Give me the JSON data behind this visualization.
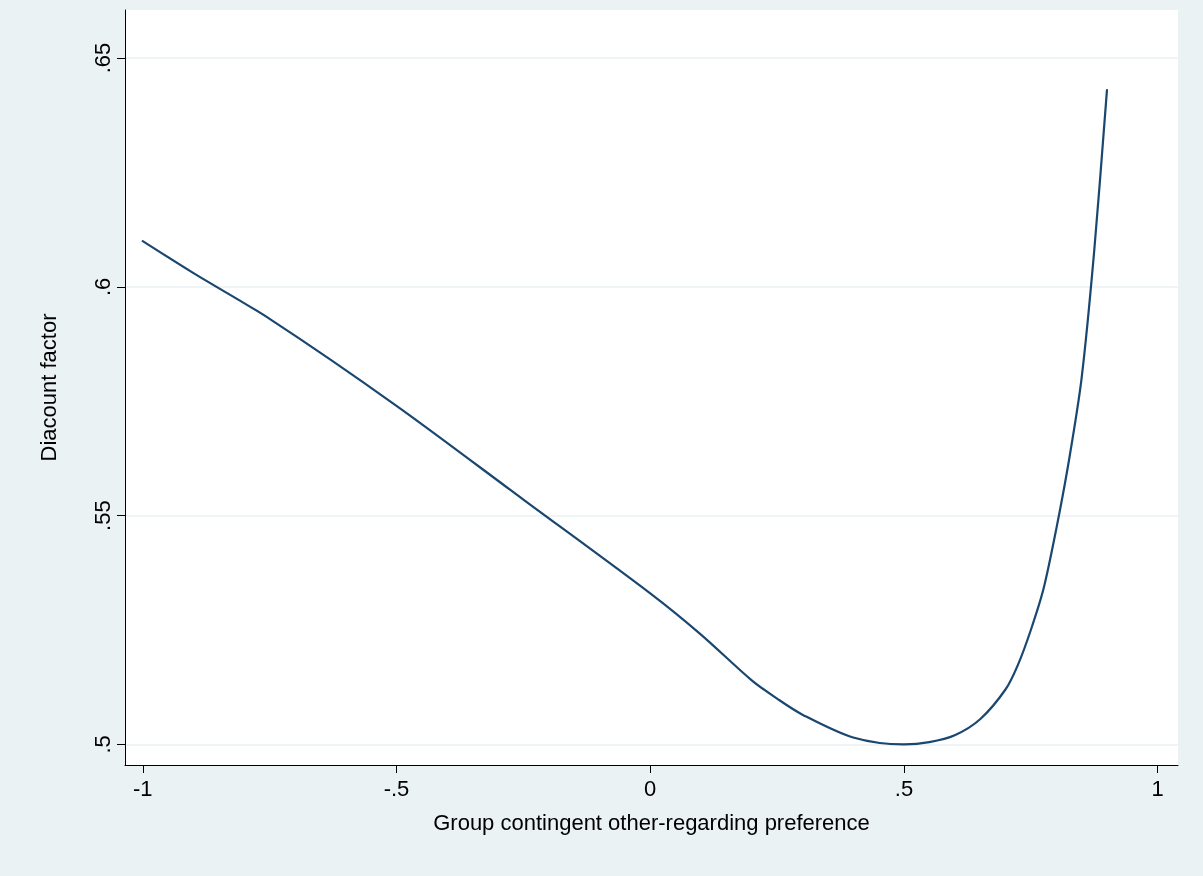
{
  "chart_data": {
    "type": "line",
    "xlabel": "Group contingent other-regarding preference",
    "ylabel": "Diacount factor",
    "x": [
      -1,
      -0.9,
      -0.75,
      -0.5,
      -0.25,
      0,
      0.1,
      0.2,
      0.25,
      0.3,
      0.4,
      0.5,
      0.55,
      0.6,
      0.65,
      0.7,
      0.725,
      0.75,
      0.775,
      0.8,
      0.825,
      0.85,
      0.875,
      0.9
    ],
    "series": [
      {
        "color": "#1a476f",
        "values": [
          0.61,
          0.603,
          0.593,
          0.574,
          0.5535,
          0.533,
          0.524,
          0.514,
          0.51,
          0.5065,
          0.5015,
          0.5,
          0.5005,
          0.502,
          0.5055,
          0.512,
          0.5175,
          0.525,
          0.534,
          0.547,
          0.562,
          0.58,
          0.608,
          0.643
        ]
      }
    ],
    "xlim": [
      -1.035,
      1.04
    ],
    "ylim": [
      0.4955,
      0.6605
    ],
    "xticks": [
      {
        "value": -1,
        "label": "-1"
      },
      {
        "value": -0.5,
        "label": "-.5"
      },
      {
        "value": 0,
        "label": "0"
      },
      {
        "value": 0.5,
        "label": ".5"
      },
      {
        "value": 1,
        "label": "1"
      }
    ],
    "yticks": [
      {
        "value": 0.5,
        "label": ".5"
      },
      {
        "value": 0.55,
        "label": ".55"
      },
      {
        "value": 0.6,
        "label": ".6"
      },
      {
        "value": 0.65,
        "label": ".65"
      }
    ],
    "grid": "y",
    "marker": "none",
    "line_style": "solid"
  }
}
